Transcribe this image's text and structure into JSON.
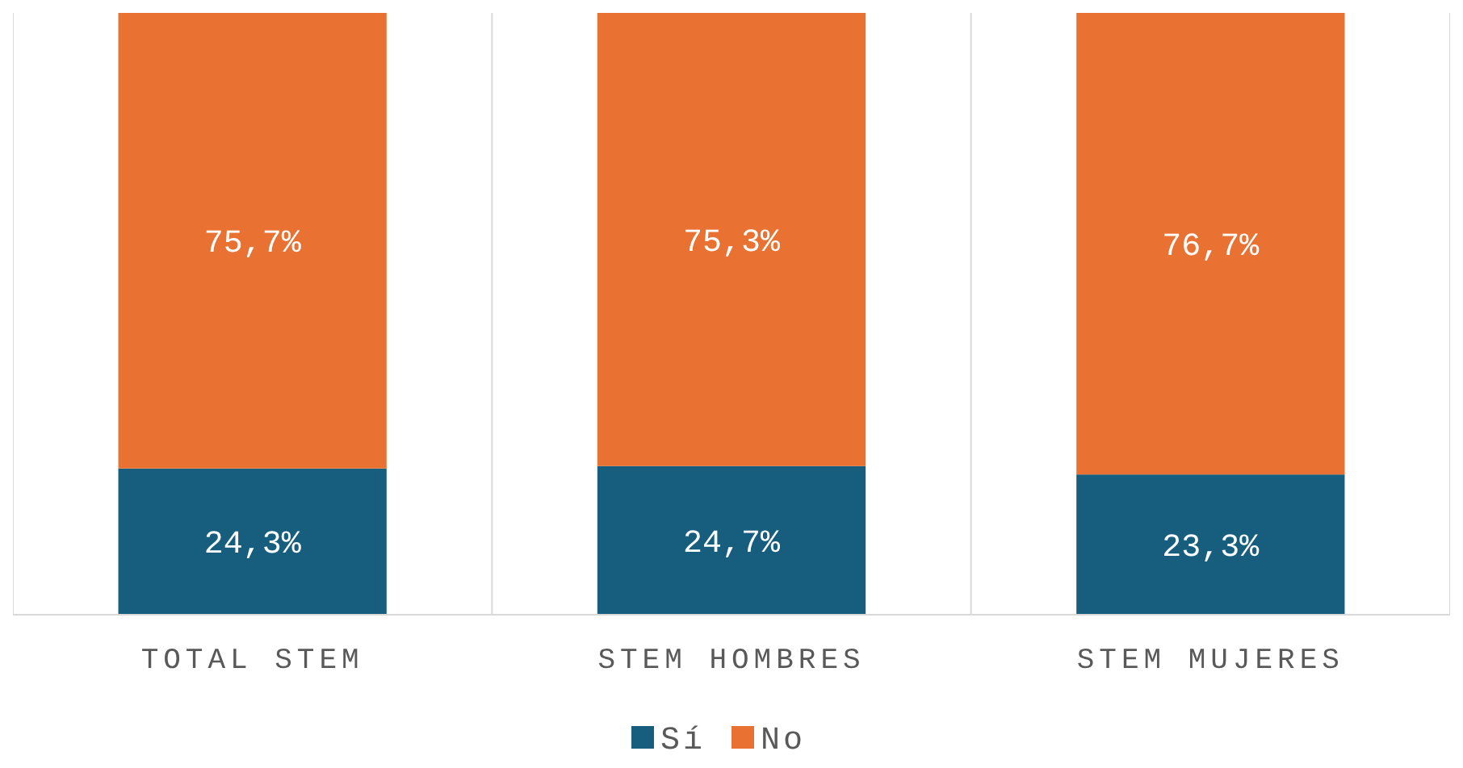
{
  "chart_data": {
    "type": "bar",
    "stacked": true,
    "categories": [
      "TOTAL STEM",
      "STEM HOMBRES",
      "STEM MUJERES"
    ],
    "series": [
      {
        "name": "Sí",
        "color": "#175e7e",
        "values": [
          24.3,
          24.7,
          23.3
        ],
        "value_labels": [
          "24,3%",
          "24,7%",
          "23,3%"
        ]
      },
      {
        "name": "No",
        "color": "#e97132",
        "values": [
          75.7,
          75.3,
          76.7
        ],
        "value_labels": [
          "75,7%",
          "75,3%",
          "76,7%"
        ]
      }
    ],
    "legend": "bottom"
  }
}
